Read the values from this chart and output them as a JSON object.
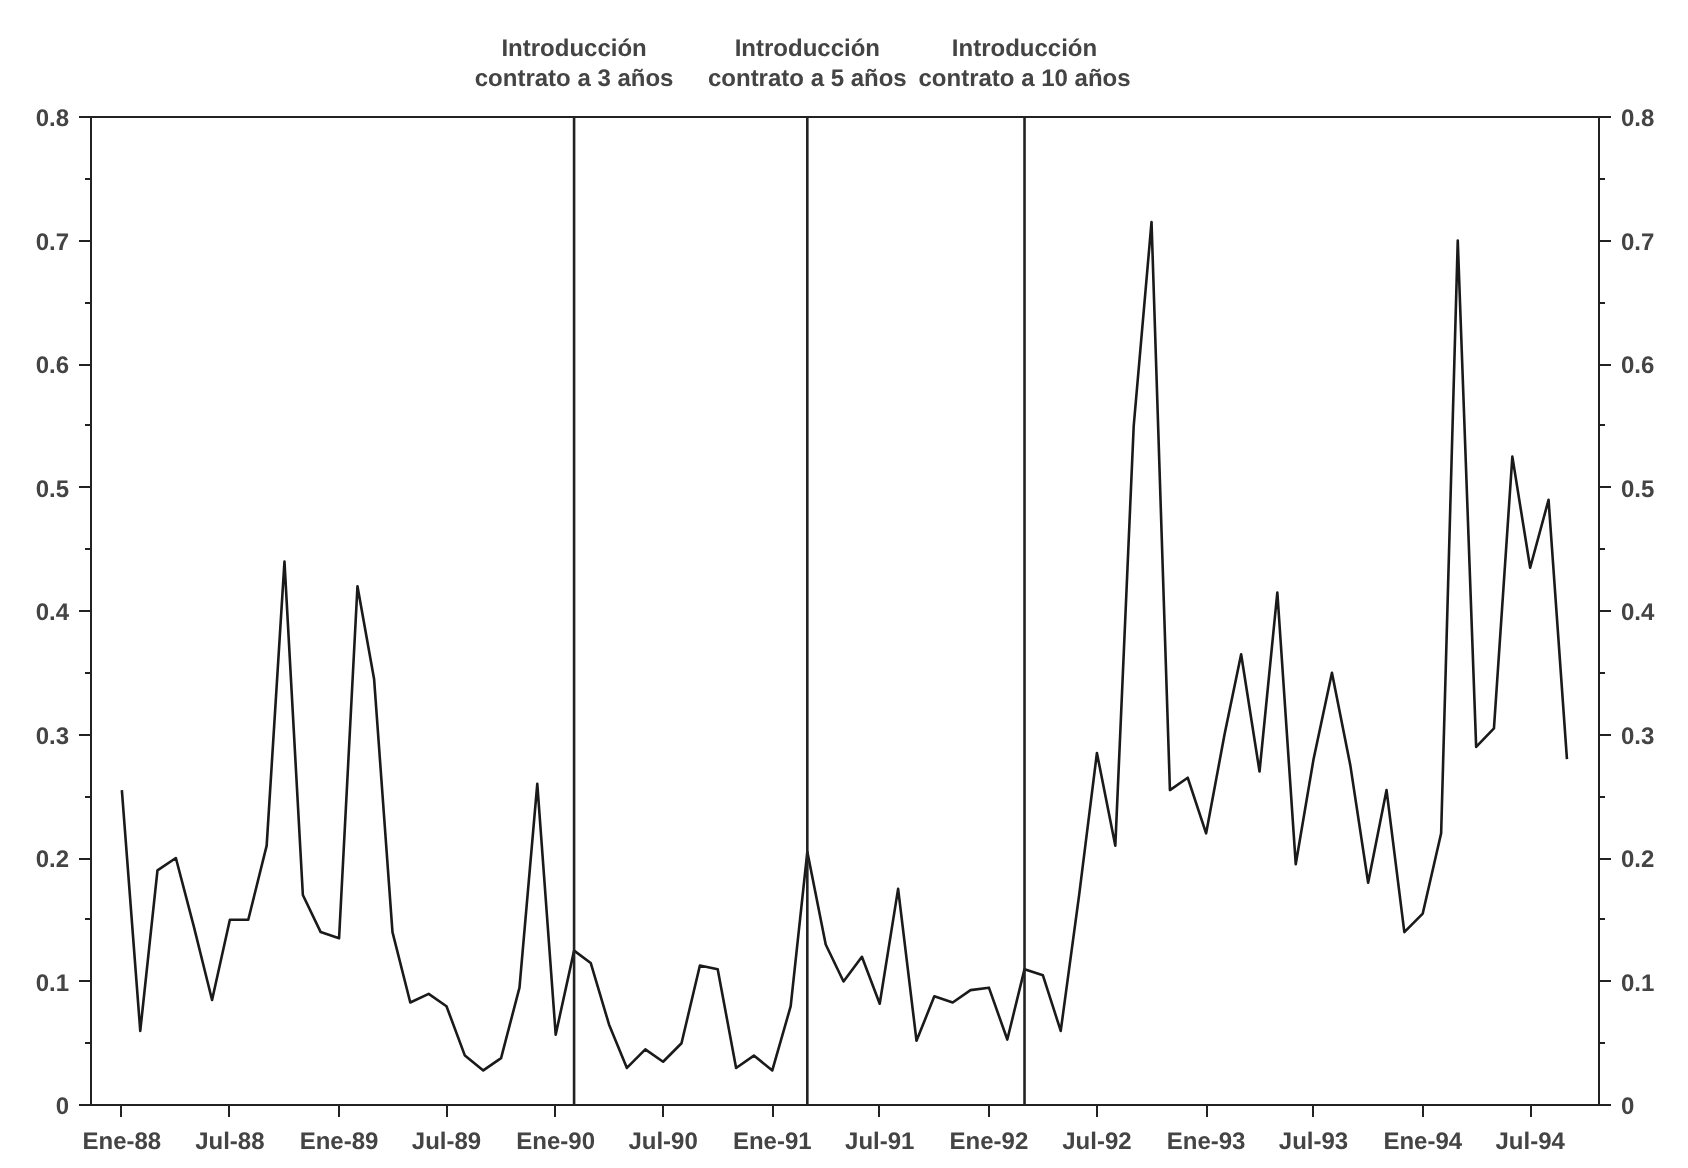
{
  "chart_data": {
    "type": "line",
    "x": [
      "1988-01",
      "1988-02",
      "1988-03",
      "1988-04",
      "1988-05",
      "1988-06",
      "1988-07",
      "1988-08",
      "1988-09",
      "1988-10",
      "1988-11",
      "1988-12",
      "1989-01",
      "1989-02",
      "1989-03",
      "1989-04",
      "1989-05",
      "1989-06",
      "1989-07",
      "1989-08",
      "1989-09",
      "1989-10",
      "1989-11",
      "1989-12",
      "1990-01",
      "1990-02",
      "1990-03",
      "1990-04",
      "1990-05",
      "1990-06",
      "1990-07",
      "1990-08",
      "1990-09",
      "1990-10",
      "1990-11",
      "1990-12",
      "1991-01",
      "1991-02",
      "1991-03",
      "1991-04",
      "1991-05",
      "1991-06",
      "1991-07",
      "1991-08",
      "1991-09",
      "1991-10",
      "1991-11",
      "1991-12",
      "1992-01",
      "1992-02",
      "1992-03",
      "1992-04",
      "1992-05",
      "1992-06",
      "1992-07",
      "1992-08",
      "1992-09",
      "1992-10",
      "1992-11",
      "1992-12",
      "1993-01",
      "1993-02",
      "1993-03",
      "1993-04",
      "1993-05",
      "1993-06",
      "1993-07",
      "1993-08",
      "1993-09",
      "1993-10",
      "1993-11",
      "1993-12",
      "1994-01",
      "1994-02",
      "1994-03",
      "1994-04",
      "1994-05",
      "1994-06",
      "1994-07",
      "1994-08",
      "1994-09"
    ],
    "series": [
      {
        "color": "#1a1a1a",
        "values": [
          0.255,
          0.06,
          0.19,
          0.2,
          0.145,
          0.085,
          0.15,
          0.15,
          0.21,
          0.44,
          0.17,
          0.14,
          0.135,
          0.42,
          0.345,
          0.14,
          0.083,
          0.09,
          0.08,
          0.04,
          0.028,
          0.038,
          0.095,
          0.26,
          0.057,
          0.125,
          0.115,
          0.065,
          0.03,
          0.045,
          0.035,
          0.05,
          0.113,
          0.11,
          0.03,
          0.04,
          0.028,
          0.08,
          0.205,
          0.13,
          0.1,
          0.12,
          0.082,
          0.175,
          0.052,
          0.088,
          0.083,
          0.093,
          0.095,
          0.053,
          0.11,
          0.105,
          0.06,
          0.17,
          0.285,
          0.21,
          0.55,
          0.715,
          0.255,
          0.265,
          0.22,
          0.3,
          0.365,
          0.27,
          0.415,
          0.195,
          0.28,
          0.35,
          0.275,
          0.18,
          0.255,
          0.14,
          0.155,
          0.22,
          0.7,
          0.29,
          0.305,
          0.525,
          0.435,
          0.49,
          0.28
        ]
      }
    ],
    "xlim": [
      "1987-11-10",
      "1994-10-25"
    ],
    "xticks": [
      {
        "value": "1988-01",
        "label": "Ene-88"
      },
      {
        "value": "1988-07",
        "label": "Jul-88"
      },
      {
        "value": "1989-01",
        "label": "Ene-89"
      },
      {
        "value": "1989-07",
        "label": "Jul-89"
      },
      {
        "value": "1990-01",
        "label": "Ene-90"
      },
      {
        "value": "1990-07",
        "label": "Jul-90"
      },
      {
        "value": "1991-01",
        "label": "Ene-91"
      },
      {
        "value": "1991-07",
        "label": "Jul-91"
      },
      {
        "value": "1992-01",
        "label": "Ene-92"
      },
      {
        "value": "1992-07",
        "label": "Jul-92"
      },
      {
        "value": "1993-01",
        "label": "Ene-93"
      },
      {
        "value": "1993-07",
        "label": "Jul-93"
      },
      {
        "value": "1994-01",
        "label": "Ene-94"
      },
      {
        "value": "1994-07",
        "label": "Jul-94"
      }
    ],
    "ylim": [
      0,
      0.8
    ],
    "yticks": [
      0,
      {
        "value": 0.05,
        "label": null
      },
      0.1,
      {
        "value": 0.15,
        "label": null
      },
      0.2,
      {
        "value": 0.25,
        "label": null
      },
      0.3,
      {
        "value": 0.35,
        "label": null
      },
      0.4,
      {
        "value": 0.45,
        "label": null
      },
      0.5,
      {
        "value": 0.55,
        "label": null
      },
      0.6,
      {
        "value": 0.65,
        "label": null
      },
      0.7,
      {
        "value": 0.75,
        "label": null
      },
      0.8
    ],
    "y2lim": [
      0,
      0.8
    ],
    "y2ticks": [
      0,
      {
        "value": 0.05,
        "label": null
      },
      0.1,
      {
        "value": 0.15,
        "label": null
      },
      0.2,
      {
        "value": 0.25,
        "label": null
      },
      0.3,
      {
        "value": 0.35,
        "label": null
      },
      0.4,
      {
        "value": 0.45,
        "label": null
      },
      0.5,
      {
        "value": 0.55,
        "label": null
      },
      0.6,
      {
        "value": 0.65,
        "label": null
      },
      0.7,
      {
        "value": 0.75,
        "label": null
      },
      0.8
    ],
    "ref_lines": [
      {
        "axis": "x",
        "value": "1990-02",
        "label": "Introducción\ncontrato a 3 años"
      },
      {
        "axis": "x",
        "value": "1991-03",
        "label": "Introducción\ncontrato a 5 años"
      },
      {
        "axis": "x",
        "value": "1992-03",
        "label": "Introducción\ncontrato a 10 años"
      }
    ],
    "grid": false,
    "marker": "none",
    "line_style": "solid"
  }
}
